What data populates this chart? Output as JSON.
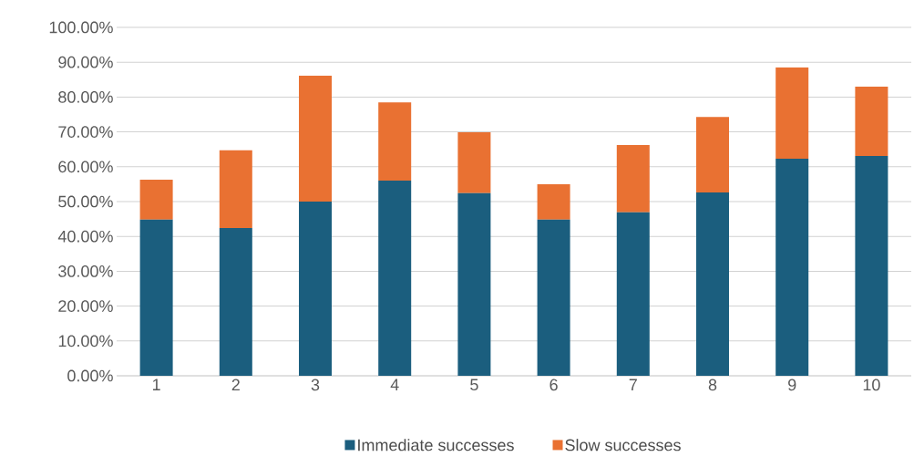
{
  "chart_data": {
    "type": "bar",
    "stacked": true,
    "categories": [
      "1",
      "2",
      "3",
      "4",
      "5",
      "6",
      "7",
      "8",
      "9",
      "10"
    ],
    "series": [
      {
        "name": "Immediate successes",
        "color": "#1b5e7e",
        "values": [
          44.8,
          42.4,
          50.0,
          56.0,
          52.4,
          44.8,
          46.9,
          52.6,
          62.3,
          63.1
        ]
      },
      {
        "name": "Slow successes",
        "color": "#e97132",
        "values": [
          11.5,
          22.3,
          36.1,
          22.5,
          17.5,
          10.2,
          19.3,
          21.7,
          26.2,
          19.9
        ]
      }
    ],
    "ylim": [
      0,
      100
    ],
    "yticks": [
      {
        "value": 0,
        "label": "0.00%"
      },
      {
        "value": 10,
        "label": "10.00%"
      },
      {
        "value": 20,
        "label": "20.00%"
      },
      {
        "value": 30,
        "label": "30.00%"
      },
      {
        "value": 40,
        "label": "40.00%"
      },
      {
        "value": 50,
        "label": "50.00%"
      },
      {
        "value": 60,
        "label": "60.00%"
      },
      {
        "value": 70,
        "label": "70.00%"
      },
      {
        "value": 80,
        "label": "80.00%"
      },
      {
        "value": 90,
        "label": "90.00%"
      },
      {
        "value": 100,
        "label": "100.00%"
      }
    ],
    "grid": "y",
    "legend": "bottom"
  }
}
